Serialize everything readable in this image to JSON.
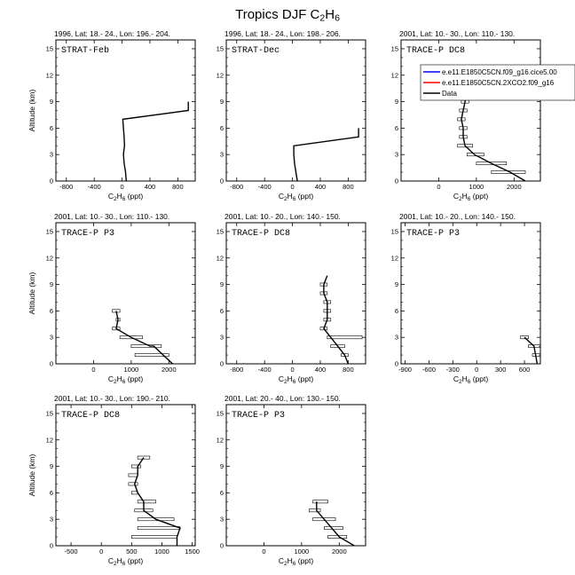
{
  "title": {
    "main": "Tropics DJF C",
    "sub1": "2",
    "mid": "H",
    "sub2": "6"
  },
  "legend": {
    "entries": [
      {
        "label": "e.e11.E1850C5CN.f09_g16.cice5.00",
        "color": "#0000ff"
      },
      {
        "label": "e.e11.E1850C5CN.2XCO2.f09_g16",
        "color": "#ff0000"
      },
      {
        "label": "Data",
        "color": "#000000"
      }
    ]
  },
  "chart_data": [
    {
      "type": "line",
      "header": "1996, Lat: 18.- 24., Lon: 196.- 204.",
      "annotation": "STRAT-Feb",
      "xlabel": {
        "pre": "C",
        "s1": "2",
        "mid": "H",
        "s2": "6",
        "post": " (ppt)"
      },
      "ylabel": "Altitude (km)",
      "xlim": [
        -950,
        1050
      ],
      "ylim": [
        0,
        16
      ],
      "xticks": [
        -800,
        -400,
        0,
        400,
        800
      ],
      "yticks": [
        0,
        3,
        6,
        9,
        12,
        15
      ],
      "series": [
        {
          "name": "Data",
          "points": [
            [
              60,
              0
            ],
            [
              50,
              1
            ],
            [
              30,
              2
            ],
            [
              20,
              3
            ],
            [
              35,
              4
            ],
            [
              30,
              5
            ],
            [
              20,
              6
            ],
            [
              10,
              7
            ],
            [
              950,
              8
            ],
            [
              950,
              9
            ]
          ]
        }
      ],
      "bars": []
    },
    {
      "type": "line",
      "header": "1996, Lat: 18.- 24., Lon: 198.- 206.",
      "annotation": "STRAT-Dec",
      "xlabel": {
        "pre": "C",
        "s1": "2",
        "mid": "H",
        "s2": "6",
        "post": " (ppt)"
      },
      "ylabel": "",
      "xlim": [
        -950,
        1050
      ],
      "ylim": [
        0,
        16
      ],
      "xticks": [
        -800,
        -400,
        0,
        400,
        800
      ],
      "yticks": [
        0,
        3,
        6,
        9,
        12,
        15
      ],
      "series": [
        {
          "name": "Data",
          "points": [
            [
              70,
              0
            ],
            [
              50,
              1
            ],
            [
              30,
              2
            ],
            [
              20,
              3
            ],
            [
              20,
              4
            ],
            [
              950,
              5
            ],
            [
              950,
              6
            ]
          ]
        }
      ],
      "bars": [
        [
          0,
          1,
          60
        ],
        [
          0,
          4,
          950
        ]
      ]
    },
    {
      "type": "line",
      "header": "2001, Lat: 10.- 30., Lon: 110.- 130.",
      "annotation": "TRACE-P DC8",
      "xlabel": {
        "pre": "C",
        "s1": "2",
        "mid": "H",
        "s2": "6",
        "post": " (ppt)"
      },
      "ylabel": "",
      "xlim": [
        -1000,
        2700
      ],
      "ylim": [
        0,
        16
      ],
      "xticks": [
        0,
        1000,
        2000
      ],
      "yticks": [
        0,
        3,
        6,
        9,
        12,
        15
      ],
      "series": [
        {
          "name": "Data",
          "points": [
            [
              2300,
              0
            ],
            [
              1900,
              1
            ],
            [
              1400,
              2
            ],
            [
              950,
              3
            ],
            [
              700,
              4
            ],
            [
              650,
              5
            ],
            [
              650,
              6
            ],
            [
              600,
              7
            ],
            [
              650,
              8
            ],
            [
              700,
              9
            ],
            [
              700,
              10
            ]
          ]
        }
      ],
      "bars": [
        [
          1400,
          2300,
          1
        ],
        [
          1000,
          1800,
          2
        ],
        [
          750,
          1200,
          3
        ],
        [
          500,
          900,
          4
        ],
        [
          550,
          750,
          5
        ],
        [
          550,
          750,
          6
        ],
        [
          500,
          700,
          7
        ],
        [
          550,
          750,
          8
        ],
        [
          600,
          800,
          9
        ],
        [
          600,
          800,
          10
        ]
      ]
    },
    {
      "type": "line",
      "header": "2001, Lat: 10.- 30., Lon: 110.- 130.",
      "annotation": "TRACE-P P3",
      "xlabel": {
        "pre": "C",
        "s1": "2",
        "mid": "H",
        "s2": "6",
        "post": " (ppt)"
      },
      "ylabel": "Altitude (km)",
      "xlim": [
        -1000,
        2700
      ],
      "ylim": [
        0,
        16
      ],
      "xticks": [
        0,
        1000,
        2000
      ],
      "yticks": [
        0,
        3,
        6,
        9,
        12,
        15
      ],
      "series": [
        {
          "name": "Data",
          "points": [
            [
              2100,
              0
            ],
            [
              1600,
              2
            ],
            [
              1500,
              2
            ],
            [
              1000,
              3
            ],
            [
              600,
              4
            ],
            [
              650,
              5
            ],
            [
              600,
              6
            ]
          ]
        }
      ],
      "bars": [
        [
          1100,
          2000,
          1
        ],
        [
          1000,
          1800,
          2
        ],
        [
          700,
          1300,
          3
        ],
        [
          500,
          700,
          4
        ],
        [
          600,
          700,
          5
        ],
        [
          500,
          700,
          6
        ]
      ]
    },
    {
      "type": "line",
      "header": "2001, Lat: 10.- 20., Lon: 140.- 150.",
      "annotation": "TRACE-P DC8",
      "xlabel": {
        "pre": "C",
        "s1": "2",
        "mid": "H",
        "s2": "6",
        "post": " (ppt)"
      },
      "ylabel": "",
      "xlim": [
        -950,
        1050
      ],
      "ylim": [
        0,
        16
      ],
      "xticks": [
        -800,
        -400,
        0,
        400,
        800
      ],
      "yticks": [
        0,
        3,
        6,
        9,
        12,
        15
      ],
      "series": [
        {
          "name": "Data",
          "points": [
            [
              800,
              0
            ],
            [
              750,
              1
            ],
            [
              650,
              2
            ],
            [
              550,
              3
            ],
            [
              450,
              4
            ],
            [
              500,
              5
            ],
            [
              500,
              6
            ],
            [
              500,
              7
            ],
            [
              450,
              8
            ],
            [
              450,
              9
            ],
            [
              500,
              10
            ]
          ]
        }
      ],
      "bars": [
        [
          700,
          800,
          1
        ],
        [
          550,
          750,
          2
        ],
        [
          500,
          1000,
          3
        ],
        [
          400,
          500,
          4
        ],
        [
          450,
          550,
          5
        ],
        [
          450,
          550,
          6
        ],
        [
          450,
          550,
          7
        ],
        [
          400,
          500,
          8
        ],
        [
          400,
          500,
          9
        ]
      ]
    },
    {
      "type": "line",
      "header": "2001, Lat: 10.- 20., Lon: 140.- 150.",
      "annotation": "TRACE-P P3",
      "xlabel": {
        "pre": "C",
        "s1": "2",
        "mid": "H",
        "s2": "6",
        "post": " (ppt)"
      },
      "ylabel": "",
      "xlim": [
        -950,
        800
      ],
      "ylim": [
        0,
        16
      ],
      "xticks": [
        -900,
        -600,
        -300,
        0,
        300,
        600
      ],
      "yticks": [
        0,
        3,
        6,
        9,
        12,
        15
      ],
      "series": [
        {
          "name": "Data",
          "points": [
            [
              760,
              0
            ],
            [
              740,
              1
            ],
            [
              720,
              2
            ],
            [
              600,
              3
            ]
          ]
        }
      ],
      "bars": [
        [
          700,
          800,
          1
        ],
        [
          650,
          800,
          2
        ],
        [
          550,
          650,
          3
        ]
      ]
    },
    {
      "type": "line",
      "header": "2001, Lat: 10.- 30., Lon: 190.- 210.",
      "annotation": "TRACE-P DC8",
      "xlabel": {
        "pre": "C",
        "s1": "2",
        "mid": "H",
        "s2": "6",
        "post": " (ppt)"
      },
      "ylabel": "Altitude (km)",
      "xlim": [
        -750,
        1550
      ],
      "ylim": [
        0,
        16
      ],
      "xticks": [
        -500,
        0,
        500,
        1000,
        1500
      ],
      "yticks": [
        0,
        3,
        6,
        9,
        12,
        15
      ],
      "series": [
        {
          "name": "Data",
          "points": [
            [
              1250,
              0
            ],
            [
              1250,
              1
            ],
            [
              1300,
              2
            ],
            [
              900,
              3
            ],
            [
              700,
              4
            ],
            [
              700,
              5
            ],
            [
              600,
              6
            ],
            [
              550,
              7
            ],
            [
              600,
              8
            ],
            [
              600,
              9
            ],
            [
              700,
              10
            ]
          ]
        }
      ],
      "bars": [
        [
          500,
          1250,
          1
        ],
        [
          600,
          1300,
          2
        ],
        [
          600,
          1200,
          3
        ],
        [
          550,
          850,
          4
        ],
        [
          600,
          900,
          5
        ],
        [
          500,
          600,
          6
        ],
        [
          450,
          600,
          7
        ],
        [
          450,
          600,
          8
        ],
        [
          500,
          650,
          9
        ],
        [
          600,
          800,
          10
        ]
      ]
    },
    {
      "type": "line",
      "header": "2001, Lat: 20.- 40., Lon: 130.- 150.",
      "annotation": "TRACE-P P3",
      "xlabel": {
        "pre": "C",
        "s1": "2",
        "mid": "H",
        "s2": "6",
        "post": " (ppt)"
      },
      "ylabel": "",
      "xlim": [
        -1000,
        2700
      ],
      "ylim": [
        0,
        16
      ],
      "xticks": [
        0,
        1000,
        2000
      ],
      "yticks": [
        0,
        3,
        6,
        9,
        12,
        15
      ],
      "series": [
        {
          "name": "Data",
          "points": [
            [
              2400,
              0
            ],
            [
              2000,
              1
            ],
            [
              1800,
              2
            ],
            [
              1600,
              3
            ],
            [
              1400,
              4
            ],
            [
              1400,
              5
            ]
          ]
        }
      ],
      "bars": [
        [
          1700,
          2200,
          1
        ],
        [
          1600,
          2100,
          2
        ],
        [
          1300,
          1900,
          3
        ],
        [
          1200,
          1500,
          4
        ],
        [
          1300,
          1700,
          5
        ]
      ]
    }
  ]
}
